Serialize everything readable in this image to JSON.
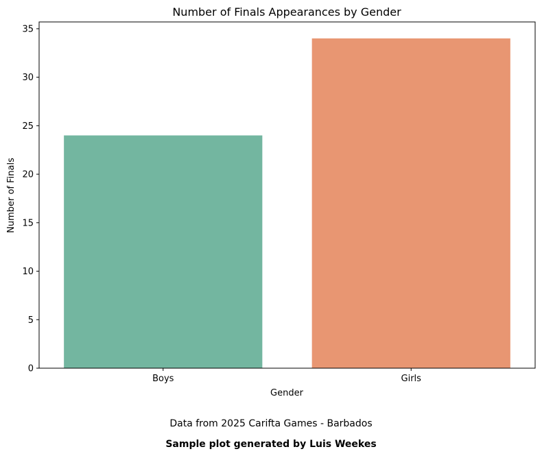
{
  "chart_data": {
    "type": "bar",
    "title": "Number of Finals Appearances by Gender",
    "xlabel": "Gender",
    "ylabel": "Number of Finals",
    "categories": [
      "Boys",
      "Girls"
    ],
    "values": [
      24,
      34
    ],
    "colors": [
      "#73b6a0",
      "#e89672"
    ],
    "ylim": [
      0,
      35.7
    ],
    "yticks": [
      "0",
      "5",
      "10",
      "15",
      "20",
      "25",
      "30",
      "35"
    ],
    "grid": false
  },
  "footer": {
    "caption": "Data from 2025 Carifta Games - Barbados",
    "credit": "Sample plot generated by Luis Weekes"
  }
}
